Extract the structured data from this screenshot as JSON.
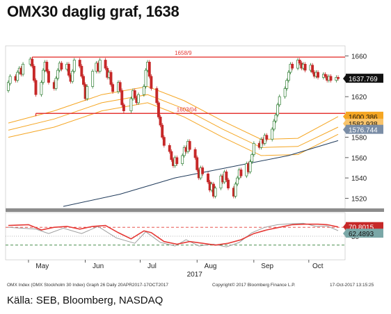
{
  "title": "OMX30 daglig graf, 1638",
  "footer": "Källa: SEB, Bloomberg, NASDAQ",
  "colors": {
    "up": "#2e7d32",
    "down": "#c62828",
    "resistance": "#e53935",
    "bands": "#f5a623",
    "ma_long": "#1f3a5a",
    "rsi_main": "#e53935",
    "rsi_signal": "#9e9e9e",
    "rsi_threshold": "#e53935",
    "rsi_floor": "#2e7d32"
  },
  "chart_data": {
    "type": "candlestick",
    "x_labels": [
      "May",
      "Jun",
      "Jul",
      "Aug",
      "Sep",
      "Oct"
    ],
    "x_year": "2017",
    "y_ticks": [
      1520,
      1540,
      1560,
      1580,
      1600,
      1620,
      1640,
      1660
    ],
    "ylim": [
      1510,
      1670
    ],
    "x_range": [
      "2017-04-20",
      "2017-10-17"
    ],
    "price_label": "1637.769",
    "band_labels": [
      "1600.386",
      "1582.938",
      "1576.744"
    ],
    "hlines": [
      {
        "label": "1658/9",
        "value": 1658.9,
        "from": "2017-05-03",
        "to": "2017-10-17"
      },
      {
        "label": "1603/04",
        "value": 1603.5,
        "from": "2017-05-05",
        "to": "2017-10-17"
      }
    ],
    "candles": [
      {
        "date": "2017-04-20",
        "open": 1626,
        "close": 1634
      },
      {
        "date": "2017-04-21",
        "open": 1633,
        "close": 1640
      },
      {
        "date": "2017-04-24",
        "open": 1640,
        "close": 1636
      },
      {
        "date": "2017-04-25",
        "open": 1636,
        "close": 1644
      },
      {
        "date": "2017-04-26",
        "open": 1644,
        "close": 1648
      },
      {
        "date": "2017-04-27",
        "open": 1648,
        "close": 1642
      },
      {
        "date": "2017-04-28",
        "open": 1642,
        "close": 1652
      },
      {
        "date": "2017-05-02",
        "open": 1652,
        "close": 1657
      },
      {
        "date": "2017-05-03",
        "open": 1657,
        "close": 1650
      },
      {
        "date": "2017-05-04",
        "open": 1650,
        "close": 1636
      },
      {
        "date": "2017-05-05",
        "open": 1636,
        "close": 1622
      },
      {
        "date": "2017-05-08",
        "open": 1622,
        "close": 1634
      },
      {
        "date": "2017-05-09",
        "open": 1634,
        "close": 1646
      },
      {
        "date": "2017-05-10",
        "open": 1646,
        "close": 1654
      },
      {
        "date": "2017-05-11",
        "open": 1654,
        "close": 1645
      },
      {
        "date": "2017-05-12",
        "open": 1645,
        "close": 1634
      },
      {
        "date": "2017-05-15",
        "open": 1634,
        "close": 1628
      },
      {
        "date": "2017-05-16",
        "open": 1628,
        "close": 1638
      },
      {
        "date": "2017-05-17",
        "open": 1638,
        "close": 1646
      },
      {
        "date": "2017-05-18",
        "open": 1646,
        "close": 1653
      },
      {
        "date": "2017-05-19",
        "open": 1653,
        "close": 1647
      },
      {
        "date": "2017-05-22",
        "open": 1647,
        "close": 1652
      },
      {
        "date": "2017-05-23",
        "open": 1652,
        "close": 1641
      },
      {
        "date": "2017-05-24",
        "open": 1641,
        "close": 1635
      },
      {
        "date": "2017-05-25",
        "open": 1635,
        "close": 1645
      },
      {
        "date": "2017-05-26",
        "open": 1645,
        "close": 1656
      },
      {
        "date": "2017-05-29",
        "open": 1656,
        "close": 1650
      },
      {
        "date": "2017-05-30",
        "open": 1650,
        "close": 1640
      },
      {
        "date": "2017-05-31",
        "open": 1640,
        "close": 1632
      },
      {
        "date": "2017-06-01",
        "open": 1632,
        "close": 1618
      },
      {
        "date": "2017-06-02",
        "open": 1618,
        "close": 1630
      },
      {
        "date": "2017-06-05",
        "open": 1630,
        "close": 1645
      },
      {
        "date": "2017-06-07",
        "open": 1645,
        "close": 1653
      },
      {
        "date": "2017-06-08",
        "open": 1653,
        "close": 1645
      },
      {
        "date": "2017-06-09",
        "open": 1645,
        "close": 1656
      },
      {
        "date": "2017-06-12",
        "open": 1656,
        "close": 1648
      },
      {
        "date": "2017-06-13",
        "open": 1648,
        "close": 1639
      },
      {
        "date": "2017-06-14",
        "open": 1639,
        "close": 1644
      },
      {
        "date": "2017-06-15",
        "open": 1644,
        "close": 1632
      },
      {
        "date": "2017-06-16",
        "open": 1632,
        "close": 1625
      },
      {
        "date": "2017-06-19",
        "open": 1625,
        "close": 1634
      },
      {
        "date": "2017-06-20",
        "open": 1634,
        "close": 1626
      },
      {
        "date": "2017-06-21",
        "open": 1626,
        "close": 1612
      },
      {
        "date": "2017-06-22",
        "open": 1612,
        "close": 1606
      },
      {
        "date": "2017-06-26",
        "open": 1606,
        "close": 1618
      },
      {
        "date": "2017-06-27",
        "open": 1618,
        "close": 1626
      },
      {
        "date": "2017-06-28",
        "open": 1626,
        "close": 1619
      },
      {
        "date": "2017-06-29",
        "open": 1619,
        "close": 1614
      },
      {
        "date": "2017-06-30",
        "open": 1614,
        "close": 1622
      },
      {
        "date": "2017-07-03",
        "open": 1622,
        "close": 1630
      },
      {
        "date": "2017-07-04",
        "open": 1630,
        "close": 1646
      },
      {
        "date": "2017-07-05",
        "open": 1646,
        "close": 1654
      },
      {
        "date": "2017-07-06",
        "open": 1654,
        "close": 1640
      },
      {
        "date": "2017-07-07",
        "open": 1640,
        "close": 1628
      },
      {
        "date": "2017-07-10",
        "open": 1628,
        "close": 1614
      },
      {
        "date": "2017-07-11",
        "open": 1614,
        "close": 1600
      },
      {
        "date": "2017-07-12",
        "open": 1600,
        "close": 1592
      },
      {
        "date": "2017-07-13",
        "open": 1592,
        "close": 1580
      },
      {
        "date": "2017-07-14",
        "open": 1580,
        "close": 1572
      },
      {
        "date": "2017-07-17",
        "open": 1572,
        "close": 1566
      },
      {
        "date": "2017-07-18",
        "open": 1566,
        "close": 1558
      },
      {
        "date": "2017-07-19",
        "open": 1558,
        "close": 1552
      },
      {
        "date": "2017-07-20",
        "open": 1552,
        "close": 1560
      },
      {
        "date": "2017-07-21",
        "open": 1560,
        "close": 1554
      },
      {
        "date": "2017-07-24",
        "open": 1554,
        "close": 1562
      },
      {
        "date": "2017-07-25",
        "open": 1562,
        "close": 1570
      },
      {
        "date": "2017-07-26",
        "open": 1570,
        "close": 1566
      },
      {
        "date": "2017-07-27",
        "open": 1566,
        "close": 1576
      },
      {
        "date": "2017-07-28",
        "open": 1576,
        "close": 1568
      },
      {
        "date": "2017-07-31",
        "open": 1568,
        "close": 1560
      },
      {
        "date": "2017-08-01",
        "open": 1560,
        "close": 1548
      },
      {
        "date": "2017-08-02",
        "open": 1548,
        "close": 1540
      },
      {
        "date": "2017-08-03",
        "open": 1540,
        "close": 1550
      },
      {
        "date": "2017-08-04",
        "open": 1550,
        "close": 1544
      },
      {
        "date": "2017-08-07",
        "open": 1544,
        "close": 1536
      },
      {
        "date": "2017-08-08",
        "open": 1536,
        "close": 1528
      },
      {
        "date": "2017-08-09",
        "open": 1528,
        "close": 1534
      },
      {
        "date": "2017-08-10",
        "open": 1534,
        "close": 1522
      },
      {
        "date": "2017-08-11",
        "open": 1522,
        "close": 1530
      },
      {
        "date": "2017-08-14",
        "open": 1530,
        "close": 1542
      },
      {
        "date": "2017-08-15",
        "open": 1542,
        "close": 1536
      },
      {
        "date": "2017-08-16",
        "open": 1536,
        "close": 1546
      },
      {
        "date": "2017-08-17",
        "open": 1546,
        "close": 1538
      },
      {
        "date": "2017-08-18",
        "open": 1538,
        "close": 1530
      },
      {
        "date": "2017-08-21",
        "open": 1530,
        "close": 1522
      },
      {
        "date": "2017-08-22",
        "open": 1522,
        "close": 1534
      },
      {
        "date": "2017-08-23",
        "open": 1534,
        "close": 1540
      },
      {
        "date": "2017-08-24",
        "open": 1540,
        "close": 1548
      },
      {
        "date": "2017-08-25",
        "open": 1548,
        "close": 1542
      },
      {
        "date": "2017-08-28",
        "open": 1542,
        "close": 1554
      },
      {
        "date": "2017-08-29",
        "open": 1554,
        "close": 1546
      },
      {
        "date": "2017-08-30",
        "open": 1546,
        "close": 1556
      },
      {
        "date": "2017-08-31",
        "open": 1556,
        "close": 1563
      },
      {
        "date": "2017-09-01",
        "open": 1563,
        "close": 1574
      },
      {
        "date": "2017-09-04",
        "open": 1574,
        "close": 1570
      },
      {
        "date": "2017-09-05",
        "open": 1570,
        "close": 1578
      },
      {
        "date": "2017-09-06",
        "open": 1578,
        "close": 1574
      },
      {
        "date": "2017-09-07",
        "open": 1574,
        "close": 1582
      },
      {
        "date": "2017-09-08",
        "open": 1582,
        "close": 1578
      },
      {
        "date": "2017-09-11",
        "open": 1578,
        "close": 1588
      },
      {
        "date": "2017-09-12",
        "open": 1588,
        "close": 1596
      },
      {
        "date": "2017-09-13",
        "open": 1596,
        "close": 1602
      },
      {
        "date": "2017-09-14",
        "open": 1602,
        "close": 1612
      },
      {
        "date": "2017-09-15",
        "open": 1612,
        "close": 1620
      },
      {
        "date": "2017-09-18",
        "open": 1620,
        "close": 1628
      },
      {
        "date": "2017-09-19",
        "open": 1628,
        "close": 1636
      },
      {
        "date": "2017-09-20",
        "open": 1636,
        "close": 1644
      },
      {
        "date": "2017-09-21",
        "open": 1644,
        "close": 1652
      },
      {
        "date": "2017-09-22",
        "open": 1652,
        "close": 1648
      },
      {
        "date": "2017-09-25",
        "open": 1648,
        "close": 1656
      },
      {
        "date": "2017-09-26",
        "open": 1656,
        "close": 1653
      },
      {
        "date": "2017-09-27",
        "open": 1653,
        "close": 1648
      },
      {
        "date": "2017-09-28",
        "open": 1648,
        "close": 1652
      },
      {
        "date": "2017-09-29",
        "open": 1652,
        "close": 1646
      },
      {
        "date": "2017-10-02",
        "open": 1646,
        "close": 1651
      },
      {
        "date": "2017-10-03",
        "open": 1651,
        "close": 1644
      },
      {
        "date": "2017-10-04",
        "open": 1644,
        "close": 1640
      },
      {
        "date": "2017-10-05",
        "open": 1640,
        "close": 1644
      },
      {
        "date": "2017-10-06",
        "open": 1644,
        "close": 1639
      },
      {
        "date": "2017-10-09",
        "open": 1639,
        "close": 1642
      },
      {
        "date": "2017-10-10",
        "open": 1642,
        "close": 1640
      },
      {
        "date": "2017-10-11",
        "open": 1640,
        "close": 1636
      },
      {
        "date": "2017-10-12",
        "open": 1636,
        "close": 1640
      },
      {
        "date": "2017-10-13",
        "open": 1640,
        "close": 1636
      },
      {
        "date": "2017-10-16",
        "open": 1636,
        "close": 1639
      },
      {
        "date": "2017-10-17",
        "open": 1639,
        "close": 1637.769
      }
    ],
    "bands": [
      {
        "name": "upper",
        "points": [
          {
            "date": "2017-04-20",
            "y": 1594
          },
          {
            "date": "2017-05-15",
            "y": 1606
          },
          {
            "date": "2017-06-10",
            "y": 1622
          },
          {
            "date": "2017-07-05",
            "y": 1630
          },
          {
            "date": "2017-07-25",
            "y": 1616
          },
          {
            "date": "2017-08-15",
            "y": 1596
          },
          {
            "date": "2017-09-05",
            "y": 1578
          },
          {
            "date": "2017-09-25",
            "y": 1579
          },
          {
            "date": "2017-10-17",
            "y": 1600.386
          }
        ]
      },
      {
        "name": "middle",
        "points": [
          {
            "date": "2017-04-20",
            "y": 1587
          },
          {
            "date": "2017-05-15",
            "y": 1598
          },
          {
            "date": "2017-06-10",
            "y": 1614
          },
          {
            "date": "2017-07-05",
            "y": 1622
          },
          {
            "date": "2017-07-25",
            "y": 1608
          },
          {
            "date": "2017-08-15",
            "y": 1588
          },
          {
            "date": "2017-09-05",
            "y": 1570
          },
          {
            "date": "2017-09-25",
            "y": 1571
          },
          {
            "date": "2017-10-17",
            "y": 1590
          }
        ]
      },
      {
        "name": "lower",
        "points": [
          {
            "date": "2017-04-20",
            "y": 1580
          },
          {
            "date": "2017-05-15",
            "y": 1590
          },
          {
            "date": "2017-06-10",
            "y": 1606
          },
          {
            "date": "2017-07-05",
            "y": 1614
          },
          {
            "date": "2017-07-25",
            "y": 1600
          },
          {
            "date": "2017-08-15",
            "y": 1580
          },
          {
            "date": "2017-09-05",
            "y": 1562
          },
          {
            "date": "2017-09-25",
            "y": 1563
          },
          {
            "date": "2017-10-17",
            "y": 1582.938
          }
        ]
      }
    ],
    "ma_long": [
      {
        "date": "2017-05-20",
        "y": 1512
      },
      {
        "date": "2017-06-20",
        "y": 1524
      },
      {
        "date": "2017-07-20",
        "y": 1540
      },
      {
        "date": "2017-08-20",
        "y": 1551
      },
      {
        "date": "2017-09-20",
        "y": 1562
      },
      {
        "date": "2017-10-17",
        "y": 1576.744
      }
    ],
    "rsi": {
      "labels": [
        "70.8015",
        "62.4893"
      ],
      "ticks": [
        50
      ],
      "ylim": [
        0,
        100
      ],
      "levels": [
        {
          "name": "upper",
          "value": 70,
          "style": "dashed"
        },
        {
          "name": "middle",
          "value": 50,
          "style": "dotted"
        },
        {
          "name": "lower",
          "value": 30,
          "style": "dashed"
        }
      ],
      "main": [
        {
          "date": "2017-04-20",
          "y": 74
        },
        {
          "date": "2017-05-01",
          "y": 76
        },
        {
          "date": "2017-05-08",
          "y": 64
        },
        {
          "date": "2017-05-15",
          "y": 70
        },
        {
          "date": "2017-05-22",
          "y": 72
        },
        {
          "date": "2017-05-29",
          "y": 66
        },
        {
          "date": "2017-06-05",
          "y": 72
        },
        {
          "date": "2017-06-12",
          "y": 74
        },
        {
          "date": "2017-06-19",
          "y": 58
        },
        {
          "date": "2017-06-26",
          "y": 44
        },
        {
          "date": "2017-07-03",
          "y": 62
        },
        {
          "date": "2017-07-07",
          "y": 58
        },
        {
          "date": "2017-07-14",
          "y": 38
        },
        {
          "date": "2017-07-21",
          "y": 32
        },
        {
          "date": "2017-07-28",
          "y": 38
        },
        {
          "date": "2017-08-04",
          "y": 34
        },
        {
          "date": "2017-08-11",
          "y": 30
        },
        {
          "date": "2017-08-18",
          "y": 34
        },
        {
          "date": "2017-08-25",
          "y": 42
        },
        {
          "date": "2017-09-01",
          "y": 56
        },
        {
          "date": "2017-09-08",
          "y": 64
        },
        {
          "date": "2017-09-15",
          "y": 70
        },
        {
          "date": "2017-09-22",
          "y": 76
        },
        {
          "date": "2017-09-29",
          "y": 77
        },
        {
          "date": "2017-10-06",
          "y": 77
        },
        {
          "date": "2017-10-11",
          "y": 76
        },
        {
          "date": "2017-10-17",
          "y": 70.8015
        }
      ],
      "signal": [
        {
          "date": "2017-04-20",
          "y": 70
        },
        {
          "date": "2017-05-05",
          "y": 66
        },
        {
          "date": "2017-05-12",
          "y": 56
        },
        {
          "date": "2017-05-20",
          "y": 68
        },
        {
          "date": "2017-05-30",
          "y": 56
        },
        {
          "date": "2017-06-08",
          "y": 72
        },
        {
          "date": "2017-06-18",
          "y": 46
        },
        {
          "date": "2017-06-28",
          "y": 34
        },
        {
          "date": "2017-07-04",
          "y": 60
        },
        {
          "date": "2017-07-12",
          "y": 36
        },
        {
          "date": "2017-07-20",
          "y": 28
        },
        {
          "date": "2017-07-26",
          "y": 42
        },
        {
          "date": "2017-08-02",
          "y": 28
        },
        {
          "date": "2017-08-10",
          "y": 32
        },
        {
          "date": "2017-08-17",
          "y": 26
        },
        {
          "date": "2017-08-24",
          "y": 36
        },
        {
          "date": "2017-08-31",
          "y": 58
        },
        {
          "date": "2017-09-07",
          "y": 70
        },
        {
          "date": "2017-09-14",
          "y": 76
        },
        {
          "date": "2017-09-21",
          "y": 78
        },
        {
          "date": "2017-09-28",
          "y": 79
        },
        {
          "date": "2017-10-05",
          "y": 72
        },
        {
          "date": "2017-10-11",
          "y": 73
        },
        {
          "date": "2017-10-17",
          "y": 62.4893
        }
      ]
    },
    "caption_left": "OMX Index (OMX Stockholm 30 Index) Graph 26 Daily 20APR2017-17OCT2017",
    "caption_mid": "Copyright© 2017 Bloomberg Finance L.P.",
    "caption_right": "17-Oct-2017 13:15:25"
  }
}
